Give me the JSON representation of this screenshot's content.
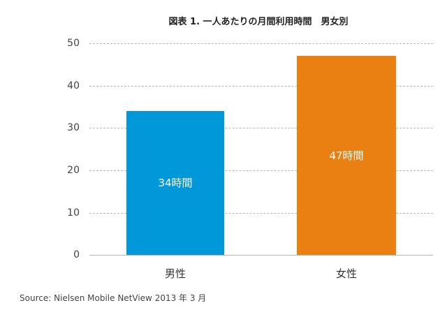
{
  "chart_data": {
    "type": "bar",
    "title": "図表 1. 一人あたりの月間利用時間　男女別",
    "categories": [
      "男性",
      "女性"
    ],
    "values": [
      34,
      47
    ],
    "data_labels": [
      "34時間",
      "47時間"
    ],
    "colors": [
      "#0098d8",
      "#ea8011"
    ],
    "xlabel": "",
    "ylabel": "",
    "ylim": [
      0,
      50
    ],
    "yticks": [
      "0",
      "10",
      "20",
      "30",
      "40",
      "50"
    ],
    "grid": true,
    "grid_style": "dashed",
    "legend": null
  },
  "source": "Source: Nielsen Mobile NetView 2013 年 3 月"
}
